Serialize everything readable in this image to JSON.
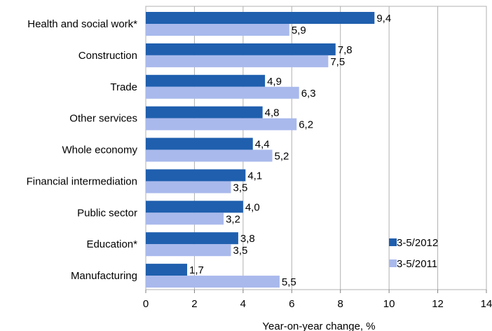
{
  "chart_data": {
    "type": "bar",
    "orientation": "horizontal",
    "categories": [
      "Health and social work*",
      "Construction",
      "Trade",
      "Other services",
      "Whole economy",
      "Financial intermediation",
      "Public sector",
      "Education*",
      "Manufacturing"
    ],
    "series": [
      {
        "name": "3-5/2012",
        "color": "#1f5fae",
        "values": [
          9.4,
          7.8,
          4.9,
          4.8,
          4.4,
          4.1,
          4.0,
          3.8,
          1.7
        ],
        "labels": [
          "9,4",
          "7,8",
          "4,9",
          "4,8",
          "4,4",
          "4,1",
          "4,0",
          "3,8",
          "1,7"
        ]
      },
      {
        "name": "3-5/2011",
        "color": "#a9b9ec",
        "values": [
          5.9,
          7.5,
          6.3,
          6.2,
          5.2,
          3.5,
          3.2,
          3.5,
          5.5
        ],
        "labels": [
          "5,9",
          "7,5",
          "6,3",
          "6,2",
          "5,2",
          "3,5",
          "3,2",
          "3,5",
          "5,5"
        ]
      }
    ],
    "xlabel": "Year-on-year change, %",
    "xlim": [
      0,
      14
    ],
    "xticks": [
      0,
      2,
      4,
      6,
      8,
      10,
      12,
      14
    ],
    "grid": "vertical",
    "legend": "bottom-right"
  }
}
